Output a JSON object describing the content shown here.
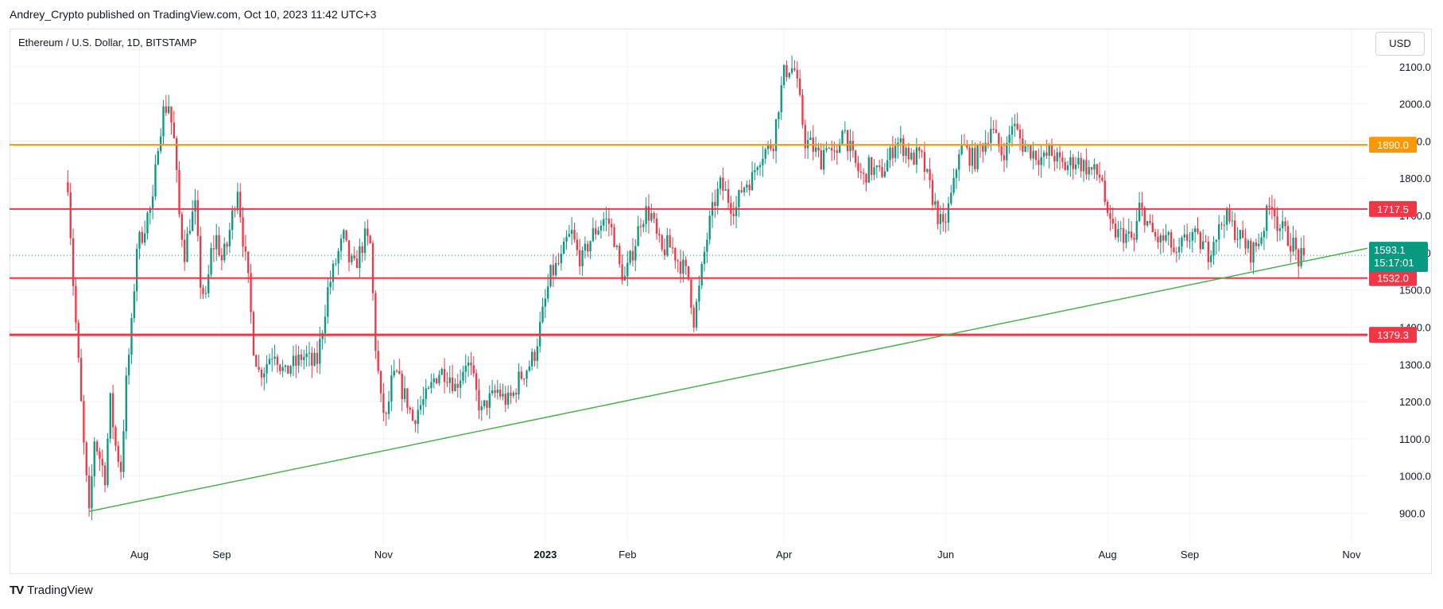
{
  "header": {
    "attribution": "Andrey_Crypto published on TradingView.com, Oct 10, 2023 11:42 UTC+3"
  },
  "chart_data": {
    "type": "candlestick",
    "title": "Ethereum / U.S. Dollar, 1D, BITSTAMP",
    "currency_label": "USD",
    "y_ticks": [
      "900.0",
      "1000.0",
      "1100.0",
      "1200.0",
      "1300.0",
      "1400.0",
      "1500.0",
      "1600.0",
      "1700.0",
      "1800.0",
      "1900.0",
      "2000.0",
      "2100.0"
    ],
    "ylim": [
      820,
      2200
    ],
    "x_ticks": [
      {
        "label": "Aug",
        "day": 27,
        "bold": false
      },
      {
        "label": "Sep",
        "day": 58,
        "bold": false
      },
      {
        "label": "Nov",
        "day": 119,
        "bold": false
      },
      {
        "label": "2023",
        "day": 180,
        "bold": true
      },
      {
        "label": "Feb",
        "day": 211,
        "bold": false
      },
      {
        "label": "Apr",
        "day": 270,
        "bold": false
      },
      {
        "label": "Jun",
        "day": 331,
        "bold": false
      },
      {
        "label": "Aug",
        "day": 392,
        "bold": false
      },
      {
        "label": "Sep",
        "day": 423,
        "bold": false
      },
      {
        "label": "Nov",
        "day": 484,
        "bold": false
      }
    ],
    "x_range_days": [
      -22,
      490
    ],
    "last_day": 466,
    "price_path": [
      [
        0,
        1790
      ],
      [
        2,
        1520
      ],
      [
        4,
        1300
      ],
      [
        6,
        1080
      ],
      [
        8,
        890
      ],
      [
        10,
        1100
      ],
      [
        12,
        1050
      ],
      [
        14,
        1000
      ],
      [
        16,
        1200
      ],
      [
        18,
        1080
      ],
      [
        20,
        1020
      ],
      [
        22,
        1250
      ],
      [
        24,
        1400
      ],
      [
        26,
        1620
      ],
      [
        28,
        1650
      ],
      [
        30,
        1700
      ],
      [
        32,
        1730
      ],
      [
        34,
        1900
      ],
      [
        36,
        1980
      ],
      [
        38,
        2000
      ],
      [
        40,
        1900
      ],
      [
        42,
        1700
      ],
      [
        44,
        1600
      ],
      [
        46,
        1680
      ],
      [
        48,
        1720
      ],
      [
        50,
        1520
      ],
      [
        52,
        1470
      ],
      [
        54,
        1600
      ],
      [
        56,
        1640
      ],
      [
        58,
        1580
      ],
      [
        60,
        1620
      ],
      [
        62,
        1700
      ],
      [
        64,
        1780
      ],
      [
        66,
        1640
      ],
      [
        68,
        1520
      ],
      [
        70,
        1350
      ],
      [
        72,
        1280
      ],
      [
        74,
        1290
      ],
      [
        76,
        1320
      ],
      [
        78,
        1340
      ],
      [
        80,
        1300
      ],
      [
        82,
        1270
      ],
      [
        84,
        1300
      ],
      [
        86,
        1300
      ],
      [
        88,
        1320
      ],
      [
        90,
        1320
      ],
      [
        92,
        1300
      ],
      [
        94,
        1310
      ],
      [
        96,
        1400
      ],
      [
        98,
        1500
      ],
      [
        100,
        1550
      ],
      [
        102,
        1600
      ],
      [
        104,
        1640
      ],
      [
        106,
        1580
      ],
      [
        108,
        1560
      ],
      [
        110,
        1600
      ],
      [
        112,
        1640
      ],
      [
        114,
        1620
      ],
      [
        116,
        1350
      ],
      [
        118,
        1200
      ],
      [
        120,
        1150
      ],
      [
        122,
        1250
      ],
      [
        124,
        1270
      ],
      [
        126,
        1230
      ],
      [
        128,
        1200
      ],
      [
        130,
        1150
      ],
      [
        132,
        1180
      ],
      [
        134,
        1200
      ],
      [
        136,
        1220
      ],
      [
        138,
        1260
      ],
      [
        140,
        1280
      ],
      [
        142,
        1280
      ],
      [
        144,
        1270
      ],
      [
        146,
        1240
      ],
      [
        148,
        1270
      ],
      [
        150,
        1310
      ],
      [
        152,
        1280
      ],
      [
        154,
        1220
      ],
      [
        156,
        1170
      ],
      [
        158,
        1200
      ],
      [
        160,
        1210
      ],
      [
        162,
        1230
      ],
      [
        164,
        1210
      ],
      [
        166,
        1200
      ],
      [
        168,
        1220
      ],
      [
        170,
        1260
      ],
      [
        172,
        1280
      ],
      [
        174,
        1300
      ],
      [
        176,
        1330
      ],
      [
        178,
        1400
      ],
      [
        180,
        1470
      ],
      [
        182,
        1540
      ],
      [
        184,
        1560
      ],
      [
        186,
        1580
      ],
      [
        188,
        1630
      ],
      [
        190,
        1650
      ],
      [
        192,
        1600
      ],
      [
        194,
        1580
      ],
      [
        196,
        1620
      ],
      [
        198,
        1650
      ],
      [
        200,
        1670
      ],
      [
        202,
        1690
      ],
      [
        204,
        1680
      ],
      [
        206,
        1640
      ],
      [
        208,
        1560
      ],
      [
        210,
        1530
      ],
      [
        212,
        1580
      ],
      [
        214,
        1630
      ],
      [
        216,
        1690
      ],
      [
        218,
        1710
      ],
      [
        220,
        1700
      ],
      [
        222,
        1640
      ],
      [
        224,
        1600
      ],
      [
        226,
        1620
      ],
      [
        228,
        1610
      ],
      [
        230,
        1580
      ],
      [
        232,
        1560
      ],
      [
        234,
        1530
      ],
      [
        236,
        1420
      ],
      [
        238,
        1500
      ],
      [
        240,
        1600
      ],
      [
        242,
        1680
      ],
      [
        244,
        1740
      ],
      [
        246,
        1780
      ],
      [
        248,
        1760
      ],
      [
        250,
        1730
      ],
      [
        252,
        1720
      ],
      [
        254,
        1770
      ],
      [
        256,
        1790
      ],
      [
        258,
        1800
      ],
      [
        260,
        1850
      ],
      [
        262,
        1870
      ],
      [
        264,
        1880
      ],
      [
        266,
        1900
      ],
      [
        268,
        2000
      ],
      [
        270,
        2080
      ],
      [
        272,
        2100
      ],
      [
        274,
        2090
      ],
      [
        276,
        2000
      ],
      [
        278,
        1900
      ],
      [
        280,
        1890
      ],
      [
        282,
        1870
      ],
      [
        284,
        1850
      ],
      [
        286,
        1900
      ],
      [
        288,
        1860
      ],
      [
        290,
        1850
      ],
      [
        292,
        1950
      ],
      [
        294,
        1900
      ],
      [
        296,
        1850
      ],
      [
        298,
        1820
      ],
      [
        300,
        1800
      ],
      [
        302,
        1830
      ],
      [
        304,
        1820
      ],
      [
        306,
        1810
      ],
      [
        308,
        1830
      ],
      [
        310,
        1860
      ],
      [
        312,
        1900
      ],
      [
        314,
        1890
      ],
      [
        316,
        1880
      ],
      [
        318,
        1850
      ],
      [
        320,
        1860
      ],
      [
        322,
        1850
      ],
      [
        324,
        1800
      ],
      [
        326,
        1750
      ],
      [
        328,
        1700
      ],
      [
        330,
        1660
      ],
      [
        332,
        1720
      ],
      [
        334,
        1780
      ],
      [
        336,
        1880
      ],
      [
        338,
        1880
      ],
      [
        340,
        1860
      ],
      [
        342,
        1850
      ],
      [
        344,
        1880
      ],
      [
        346,
        1900
      ],
      [
        348,
        1940
      ],
      [
        350,
        1900
      ],
      [
        352,
        1870
      ],
      [
        354,
        1880
      ],
      [
        356,
        1950
      ],
      [
        358,
        1920
      ],
      [
        360,
        1890
      ],
      [
        362,
        1880
      ],
      [
        364,
        1870
      ],
      [
        366,
        1860
      ],
      [
        368,
        1850
      ],
      [
        370,
        1870
      ],
      [
        372,
        1860
      ],
      [
        374,
        1840
      ],
      [
        376,
        1830
      ],
      [
        378,
        1840
      ],
      [
        380,
        1850
      ],
      [
        382,
        1840
      ],
      [
        384,
        1830
      ],
      [
        386,
        1820
      ],
      [
        388,
        1810
      ],
      [
        390,
        1800
      ],
      [
        392,
        1680
      ],
      [
        394,
        1660
      ],
      [
        396,
        1650
      ],
      [
        398,
        1650
      ],
      [
        400,
        1640
      ],
      [
        402,
        1630
      ],
      [
        404,
        1720
      ],
      [
        406,
        1700
      ],
      [
        408,
        1660
      ],
      [
        410,
        1640
      ],
      [
        412,
        1630
      ],
      [
        414,
        1640
      ],
      [
        416,
        1620
      ],
      [
        418,
        1580
      ],
      [
        420,
        1620
      ],
      [
        422,
        1640
      ],
      [
        424,
        1650
      ],
      [
        426,
        1630
      ],
      [
        428,
        1620
      ],
      [
        430,
        1600
      ],
      [
        432,
        1640
      ],
      [
        434,
        1660
      ],
      [
        436,
        1700
      ],
      [
        438,
        1680
      ],
      [
        440,
        1660
      ],
      [
        442,
        1640
      ],
      [
        444,
        1620
      ],
      [
        446,
        1600
      ],
      [
        448,
        1620
      ],
      [
        450,
        1650
      ],
      [
        452,
        1700
      ],
      [
        454,
        1740
      ],
      [
        456,
        1680
      ],
      [
        458,
        1660
      ],
      [
        460,
        1640
      ],
      [
        462,
        1620
      ],
      [
        464,
        1580
      ],
      [
        466,
        1593
      ]
    ],
    "levels": [
      {
        "price": 1890.0,
        "label": "1890.0",
        "color": "#ff9800",
        "width": 2
      },
      {
        "price": 1717.5,
        "label": "1717.5",
        "color": "#f23645",
        "width": 2
      },
      {
        "price": 1532.0,
        "label": "1532.0",
        "color": "#f23645",
        "width": 2
      },
      {
        "price": 1379.3,
        "label": "1379.3",
        "color": "#f23645",
        "width": 3
      }
    ],
    "trendline": {
      "color": "#4caf50",
      "p1": {
        "day": 8,
        "price": 905
      },
      "p2": {
        "day": 490,
        "price": 1612
      }
    },
    "current": {
      "price": 1593.1,
      "label": "1593.1",
      "countdown": "15:17:01",
      "color": "#089981"
    },
    "colors": {
      "up": "#089981",
      "down": "#f23645",
      "grid": "#f0f3fa",
      "axis_text": "#131722"
    }
  },
  "footer": {
    "brand": "TradingView",
    "logo": "TV"
  }
}
